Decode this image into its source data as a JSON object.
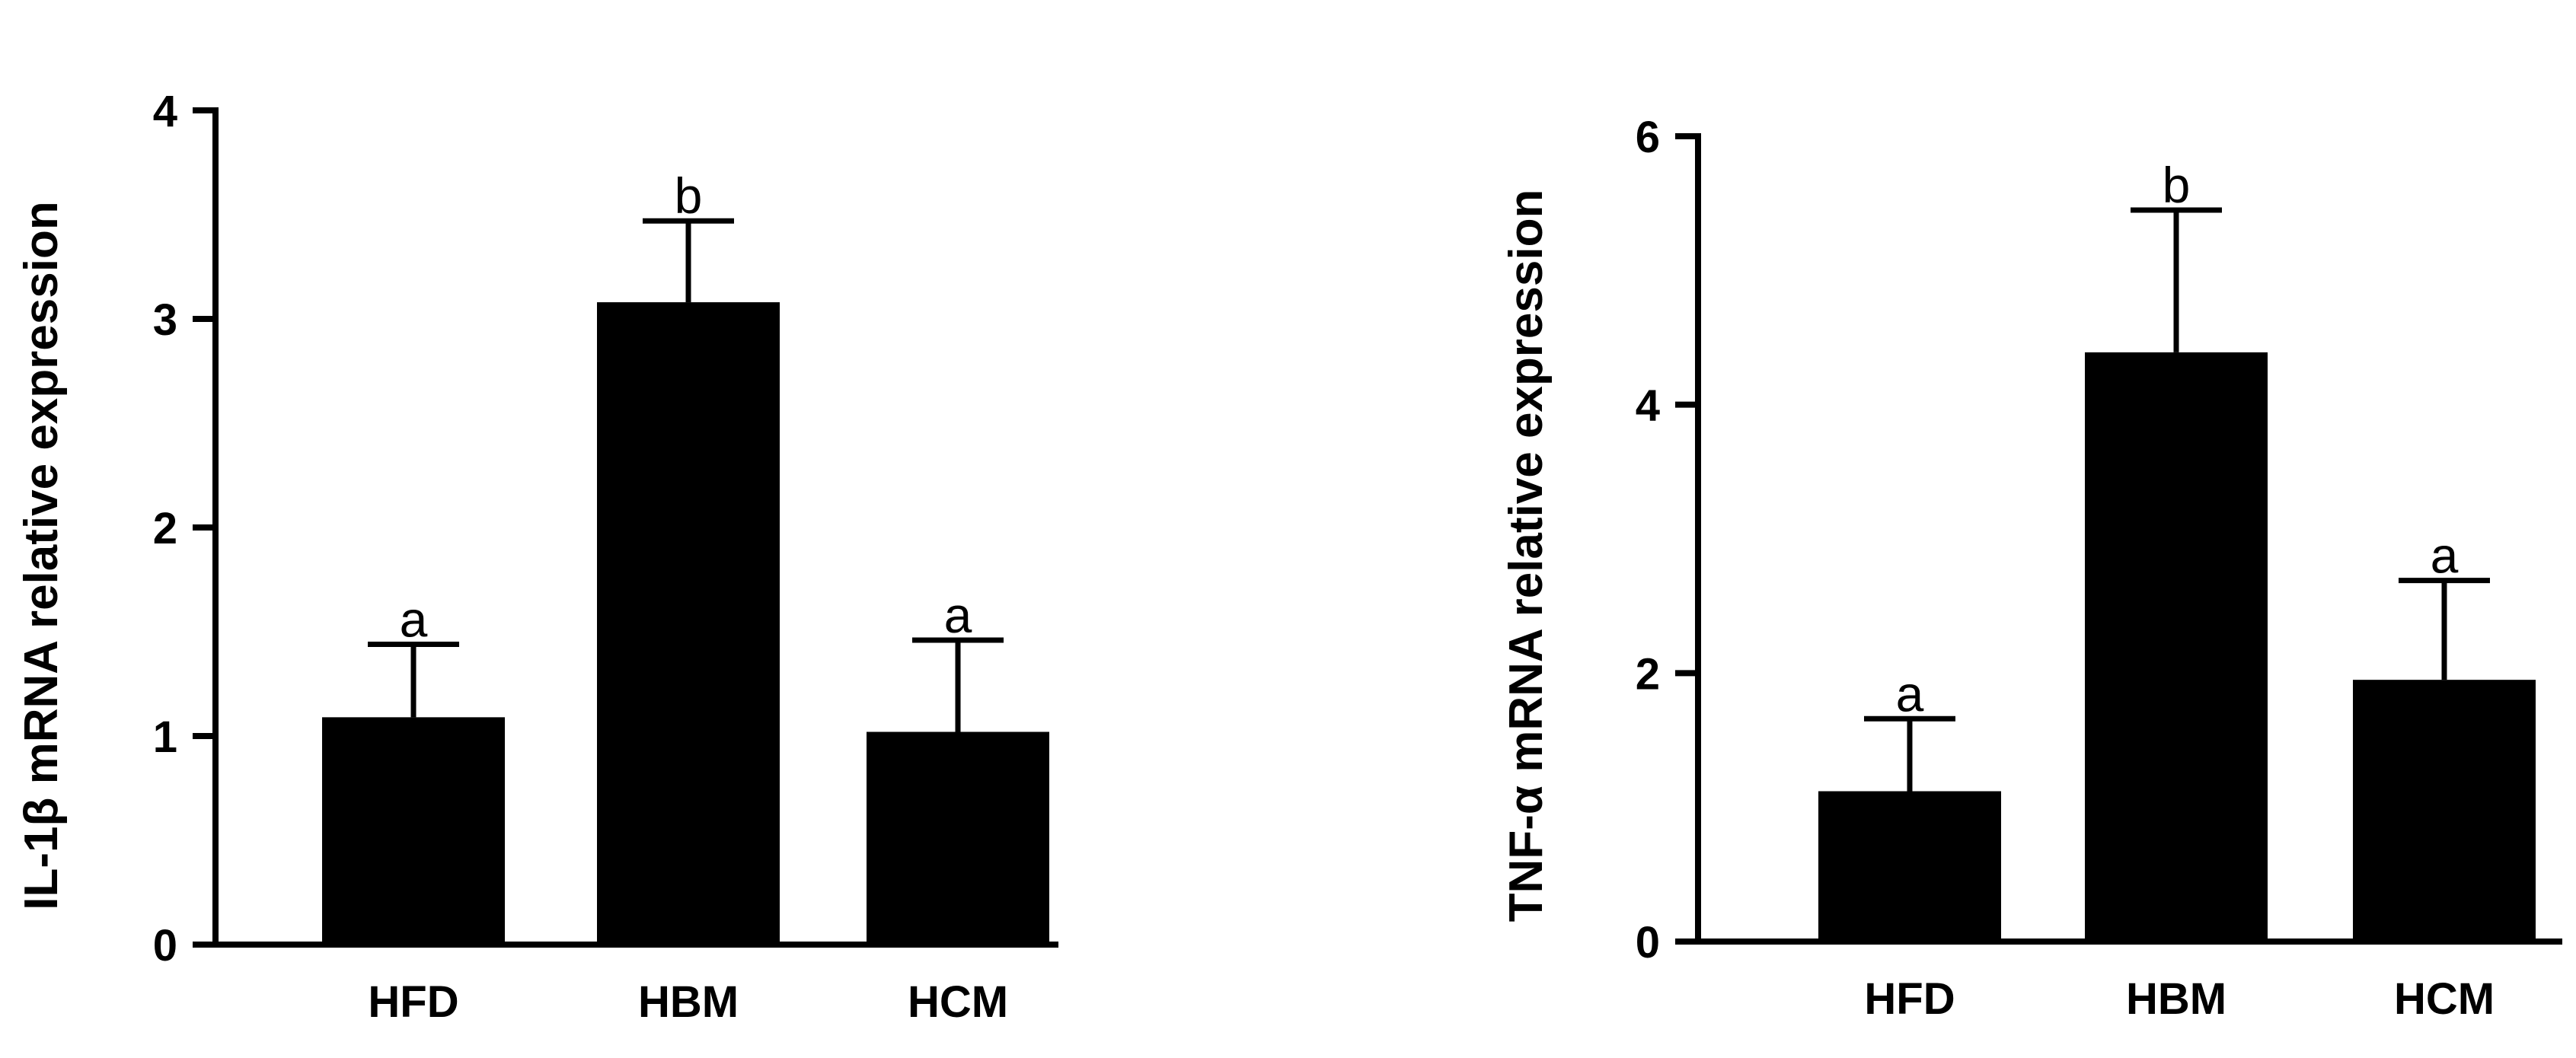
{
  "chart_data": [
    {
      "type": "bar",
      "title": "",
      "xlabel": "",
      "ylabel": "IL-1β  mRNA relative expression",
      "categories": [
        "HFD",
        "HBM",
        "HCM"
      ],
      "values": [
        1.09,
        3.08,
        1.02
      ],
      "errors": [
        0.35,
        0.39,
        0.44
      ],
      "significance": [
        "a",
        "b",
        "a"
      ],
      "ylim": [
        0,
        4
      ],
      "yticks": [
        "0",
        "1",
        "2",
        "3",
        "4"
      ],
      "bar_color": "#000000",
      "grid": false,
      "legend": "none"
    },
    {
      "type": "bar",
      "title": "",
      "xlabel": "",
      "ylabel": "TNF-α  mRNA relative expression",
      "categories": [
        "HFD",
        "HBM",
        "HCM"
      ],
      "values": [
        1.12,
        4.39,
        1.95
      ],
      "errors": [
        0.54,
        1.06,
        0.74
      ],
      "significance": [
        "a",
        "b",
        "a"
      ],
      "ylim": [
        0,
        6
      ],
      "yticks": [
        "0",
        "2",
        "4",
        "6"
      ],
      "bar_color": "#000000",
      "grid": false,
      "legend": "none"
    }
  ]
}
